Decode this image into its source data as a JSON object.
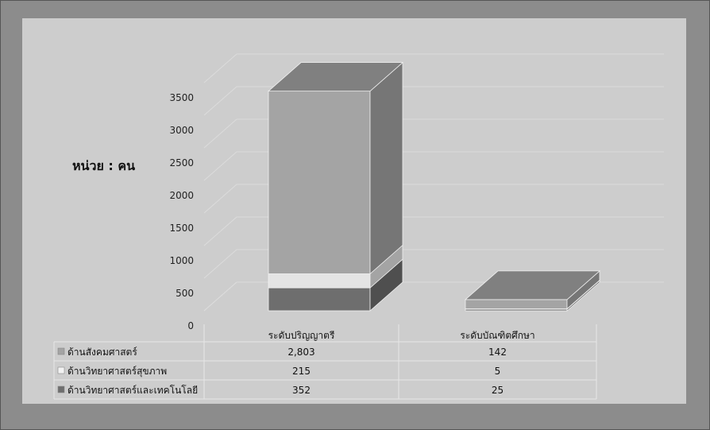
{
  "unit_label": "หน่วย : คน",
  "chart_data": {
    "type": "bar",
    "stacked": true,
    "three_d": true,
    "categories": [
      "ระดับปริญญาตรี",
      "ระดับบัณฑิตศึกษา"
    ],
    "series": [
      {
        "name": "ด้านสังคมศาสตร์",
        "values": [
          2803,
          142
        ],
        "labels": [
          "2,803",
          "142"
        ],
        "color": "#a4a4a4",
        "legend_swatch": "#a4a4a4"
      },
      {
        "name": "ด้านวิทยาศาสตร์สุขภาพ",
        "values": [
          215,
          5
        ],
        "labels": [
          "215",
          "5"
        ],
        "color": "#e4e4e4",
        "legend_swatch": "#f2f2f2"
      },
      {
        "name": "ด้านวิทยาศาสตร์และเทคโนโลยี",
        "values": [
          352,
          25
        ],
        "labels": [
          "352",
          "25"
        ],
        "color": "#6e6e6e",
        "legend_swatch": "#6e6e6e"
      }
    ],
    "yticks": [
      "0",
      "500",
      "1000",
      "1500",
      "2000",
      "2500",
      "3000",
      "3500"
    ],
    "ylim": [
      0,
      3500
    ],
    "grid": true,
    "legend": "data-table-left"
  }
}
